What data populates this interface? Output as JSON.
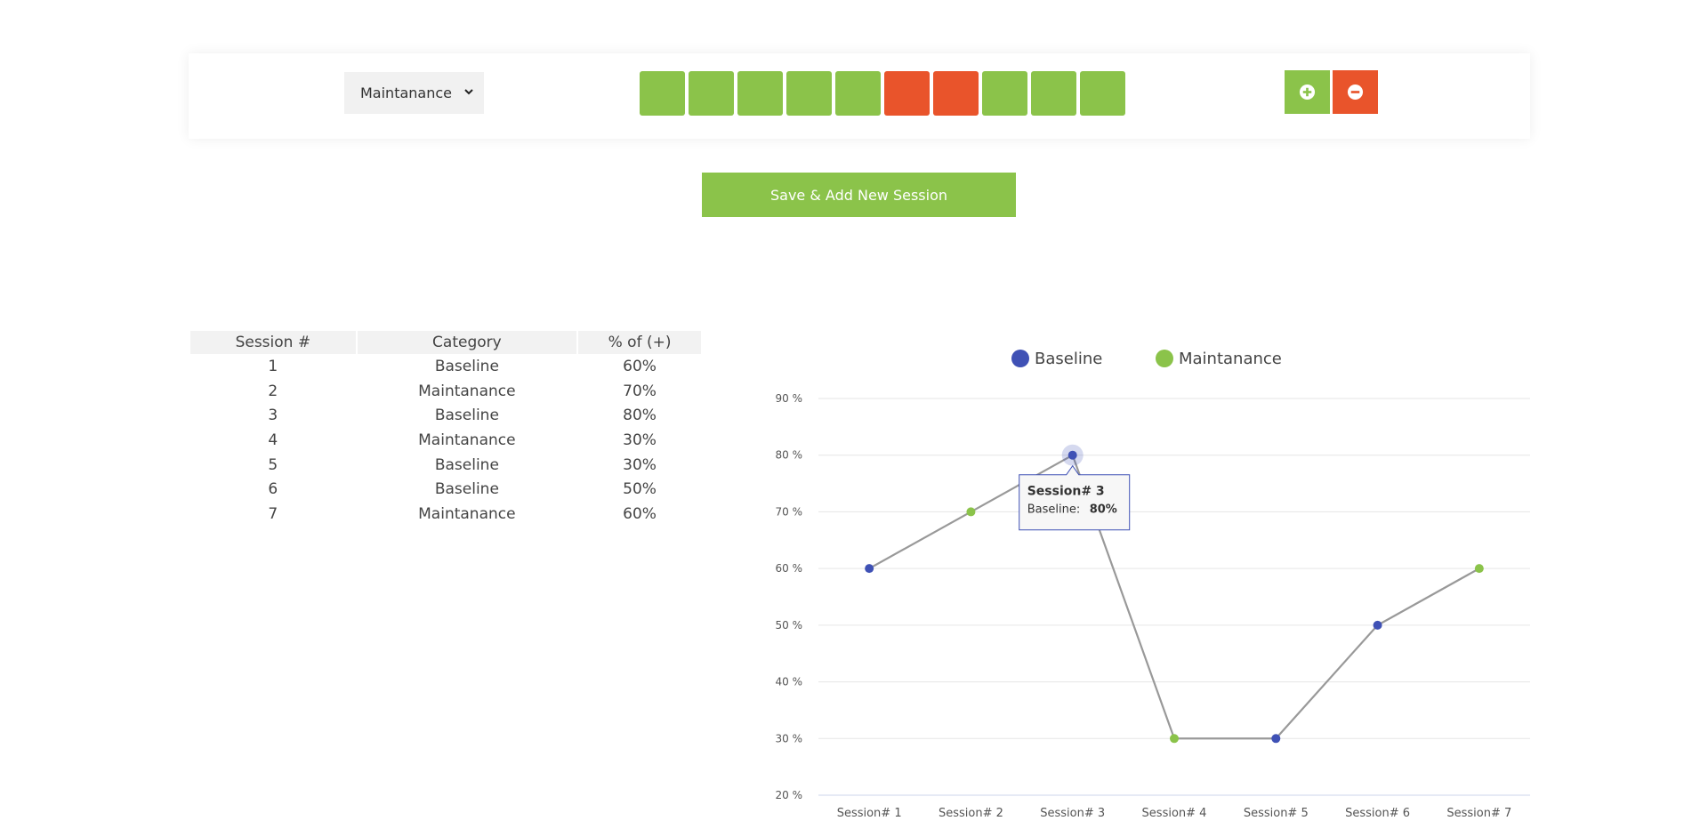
{
  "toolbar": {
    "category_select": "Maintanance",
    "score_boxes": [
      "green",
      "green",
      "green",
      "green",
      "green",
      "red",
      "red",
      "green",
      "green",
      "green"
    ],
    "add_icon": "plus-circle-icon",
    "remove_icon": "minus-circle-icon"
  },
  "colors": {
    "green": "#8bc34a",
    "red": "#e9542b",
    "baseline": "#3f51b5",
    "maintanance": "#8bc34a",
    "line": "#999999"
  },
  "save_button": "Save & Add New Session",
  "table": {
    "headers": [
      "Session #",
      "Category",
      "% of (+)"
    ],
    "rows": [
      [
        "1",
        "Baseline",
        "60%"
      ],
      [
        "2",
        "Maintanance",
        "70%"
      ],
      [
        "3",
        "Baseline",
        "80%"
      ],
      [
        "4",
        "Maintanance",
        "30%"
      ],
      [
        "5",
        "Baseline",
        "30%"
      ],
      [
        "6",
        "Baseline",
        "50%"
      ],
      [
        "7",
        "Maintanance",
        "60%"
      ]
    ]
  },
  "chart_data": {
    "type": "line",
    "categories": [
      "Session# 1",
      "Session# 2",
      "Session# 3",
      "Session# 4",
      "Session# 5",
      "Session# 6",
      "Session# 7"
    ],
    "values": [
      60,
      70,
      80,
      30,
      30,
      50,
      60
    ],
    "point_series": [
      "Baseline",
      "Maintanance",
      "Baseline",
      "Maintanance",
      "Baseline",
      "Baseline",
      "Maintanance"
    ],
    "legend": [
      "Baseline",
      "Maintanance"
    ],
    "legend_position": "top-center",
    "ylim": [
      20,
      90
    ],
    "yticks": [
      "20 %",
      "30 %",
      "40 %",
      "50 %",
      "60 %",
      "70 %",
      "80 %",
      "90 %"
    ],
    "grid": true,
    "tooltip": {
      "title": "Session# 3",
      "label": "Baseline:",
      "value": "80%"
    }
  }
}
